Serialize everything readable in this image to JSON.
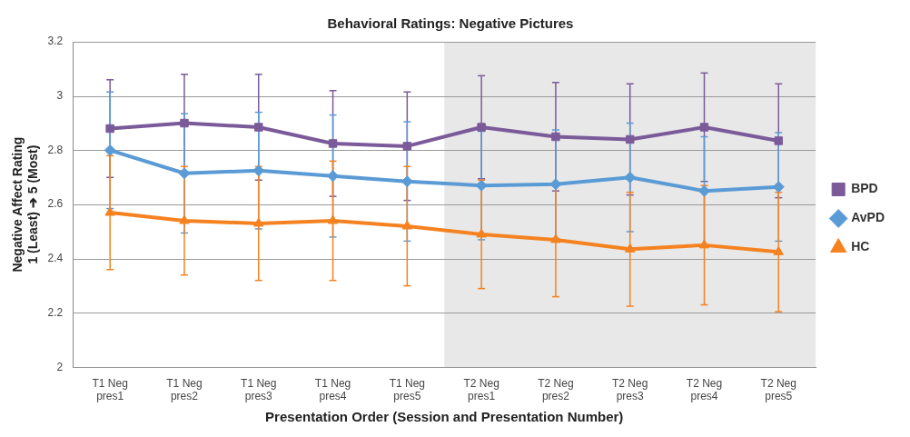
{
  "chart_data": {
    "type": "line",
    "title": "Behavioral Ratings: Negative Pictures",
    "xlabel": "Presentation Order (Session and Presentation Number)",
    "ylabel": "Negative Affect Rating\n1 (Least) ➔ 5 (Most)",
    "categories": [
      "T1 Neg pres1",
      "T1 Neg pres2",
      "T1 Neg pres3",
      "T1 Neg pres4",
      "T1 Neg pres5",
      "T2 Neg pres1",
      "T2 Neg pres2",
      "T2 Neg pres3",
      "T2 Neg pres4",
      "T2 Neg pres5"
    ],
    "series": [
      {
        "name": "BPD",
        "color": "#7b5a9a",
        "marker": "square",
        "values": [
          2.88,
          2.9,
          2.885,
          2.825,
          2.815,
          2.885,
          2.85,
          2.84,
          2.885,
          2.835
        ],
        "errors": [
          0.18,
          0.18,
          0.195,
          0.195,
          0.2,
          0.19,
          0.2,
          0.205,
          0.2,
          0.21
        ]
      },
      {
        "name": "AvPD",
        "color": "#5b9bd5",
        "marker": "diamond",
        "values": [
          2.8,
          2.715,
          2.725,
          2.705,
          2.685,
          2.67,
          2.675,
          2.7,
          2.65,
          2.665
        ],
        "errors": [
          0.215,
          0.22,
          0.215,
          0.225,
          0.22,
          0.2,
          0.2,
          0.2,
          0.2,
          0.2
        ]
      },
      {
        "name": "HC",
        "color": "#f58220",
        "marker": "triangle",
        "values": [
          2.57,
          2.54,
          2.53,
          2.54,
          2.52,
          2.49,
          2.47,
          2.435,
          2.45,
          2.425
        ],
        "errors": [
          0.21,
          0.2,
          0.21,
          0.22,
          0.22,
          0.2,
          0.21,
          0.21,
          0.22,
          0.22
        ]
      }
    ],
    "ylim": [
      2,
      3.2
    ],
    "yticks": [
      2,
      2.2,
      2.4,
      2.6,
      2.8,
      3,
      3.2
    ],
    "grid": "y",
    "legend": "right",
    "line_style": "solid",
    "bands": [
      {
        "axis": "x",
        "from": "T2 Neg pres1",
        "to": "T2 Neg pres5",
        "color": "#e8e8e8"
      }
    ]
  }
}
